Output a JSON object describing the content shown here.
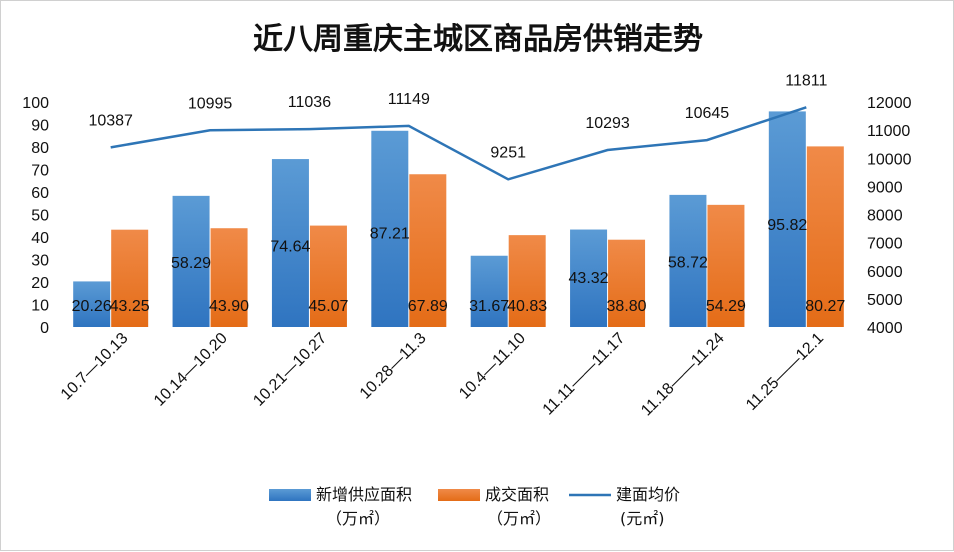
{
  "chart_data": {
    "type": "bar",
    "title": "近八周重庆主城区商品房供销走势",
    "categories": [
      "10.7—10.13",
      "10.14—10.20",
      "10.21—10.27",
      "10.28—11.3",
      "10.4—11.10",
      "11.11——11.17",
      "11.18——11.24",
      "11.25——12.1"
    ],
    "series": [
      {
        "name": "新增供应面积",
        "unit": "（万㎡）",
        "kind": "bar",
        "axis": "left",
        "color": "#4f8fd6",
        "values": [
          20.26,
          58.29,
          74.64,
          87.21,
          31.67,
          43.32,
          58.72,
          95.82
        ],
        "labels": [
          "20.26",
          "58.29",
          "74.64",
          "87.21",
          "31.67",
          "43.32",
          "58.72",
          "95.82"
        ]
      },
      {
        "name": "成交面积",
        "unit": "（万㎡）",
        "kind": "bar",
        "axis": "left",
        "color": "#ed7d31",
        "values": [
          43.25,
          43.9,
          45.07,
          67.89,
          40.83,
          38.8,
          54.29,
          80.27
        ],
        "labels": [
          "43.25",
          "43.90",
          "45.07",
          "67.89",
          "40.83",
          "38.80",
          "54.29",
          "80.27"
        ]
      },
      {
        "name": "建面均价",
        "unit": "(元㎡)",
        "kind": "line",
        "axis": "right",
        "color": "#2e75b6",
        "values": [
          10387,
          10995,
          11036,
          11149,
          9251,
          10293,
          10645,
          11811
        ],
        "labels": [
          "10387",
          "10995",
          "11036",
          "11149",
          "9251",
          "10293",
          "10645",
          "11811"
        ]
      }
    ],
    "y_left": {
      "min": 0,
      "max": 100,
      "step": 10,
      "ticks": [
        "0",
        "10",
        "20",
        "30",
        "40",
        "50",
        "60",
        "70",
        "80",
        "90",
        "100"
      ]
    },
    "y_right": {
      "min": 4000,
      "max": 12000,
      "step": 1000,
      "ticks": [
        "4000",
        "5000",
        "6000",
        "7000",
        "8000",
        "9000",
        "10000",
        "11000",
        "12000"
      ]
    },
    "legend_position": "bottom",
    "grid": false
  }
}
